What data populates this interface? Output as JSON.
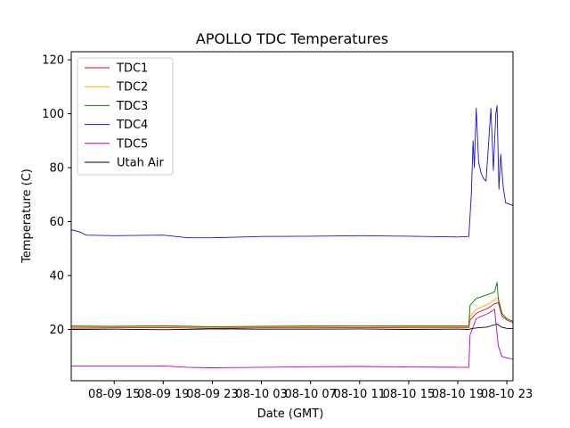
{
  "chart_data": {
    "type": "line",
    "title": "APOLLO TDC Temperatures",
    "xlabel": "Date (GMT)",
    "ylabel": "Temperature (C)",
    "x_ticks": [
      "08-09 15",
      "08-09 19",
      "08-09 23",
      "08-10 03",
      "08-10 07",
      "08-10 11",
      "08-10 15",
      "08-10 19",
      "08-10 23"
    ],
    "x_tick_hours": [
      15,
      19,
      23,
      27,
      31,
      35,
      39,
      43,
      47
    ],
    "xlim": [
      11.5,
      47.5
    ],
    "ylim": [
      1,
      123
    ],
    "y_ticks": [
      "20",
      "40",
      "60",
      "80",
      "100",
      "120"
    ],
    "y_tick_values": [
      20,
      40,
      60,
      80,
      100,
      120
    ],
    "legend_position": "upper-left",
    "series": [
      {
        "name": "TDC1",
        "color": "#e8001c",
        "x": [
          11.5,
          15,
          19,
          23,
          27,
          31,
          35,
          39,
          43,
          43.9,
          44.0,
          44.5,
          45.5,
          46.0,
          46.3,
          46.6,
          47.0,
          47.5
        ],
        "y": [
          20.5,
          20.6,
          20.7,
          20.4,
          20.6,
          20.6,
          20.7,
          20.6,
          20.6,
          20.6,
          23.5,
          26,
          28,
          29.5,
          30,
          25,
          23.5,
          22.5
        ]
      },
      {
        "name": "TDC2",
        "color": "#e8b400",
        "x": [
          11.5,
          15,
          19,
          23,
          27,
          31,
          35,
          39,
          43,
          43.9,
          44.0,
          44.5,
          45.5,
          46.0,
          46.3,
          46.6,
          47.0,
          47.5
        ],
        "y": [
          21.0,
          21.0,
          21.1,
          20.8,
          21.0,
          21.0,
          21.1,
          21.0,
          21.0,
          21.0,
          25,
          27.5,
          29.5,
          31,
          32,
          26,
          24,
          23
        ]
      },
      {
        "name": "TDC3",
        "color": "#008000",
        "x": [
          11.5,
          15,
          19,
          23,
          27,
          31,
          35,
          39,
          43,
          43.9,
          44.0,
          44.5,
          45.5,
          46.0,
          46.2,
          46.3,
          46.6,
          47.0,
          47.5
        ],
        "y": [
          21.3,
          21.2,
          21.4,
          21.0,
          21.2,
          21.3,
          21.4,
          21.3,
          21.3,
          21.3,
          29,
          31.5,
          33,
          34,
          37.5,
          31,
          26,
          24,
          23
        ]
      },
      {
        "name": "TDC4",
        "color": "#1a0fd6",
        "x": [
          11.5,
          12.3,
          12.7,
          15,
          19,
          21,
          23,
          27,
          31,
          35,
          39,
          43,
          43.9,
          44.1,
          44.25,
          44.35,
          44.5,
          44.7,
          44.9,
          45.1,
          45.3,
          45.5,
          45.7,
          45.9,
          46.1,
          46.2,
          46.35,
          46.5,
          46.7,
          46.9,
          47.5
        ],
        "y": [
          57,
          56,
          55,
          54.8,
          55,
          54,
          54,
          54.5,
          54.6,
          54.8,
          54.6,
          54.3,
          54.5,
          70,
          90,
          80,
          102,
          82,
          78,
          76,
          75,
          88,
          102,
          79,
          100,
          103,
          72,
          85,
          73,
          67,
          66
        ]
      },
      {
        "name": "TDC5",
        "color": "#b000b5",
        "x": [
          11.5,
          15,
          19,
          21,
          23,
          27,
          31,
          35,
          39,
          43,
          43.9,
          44.0,
          44.5,
          45.5,
          46.0,
          46.3,
          46.6,
          47.0,
          47.5
        ],
        "y": [
          6.5,
          6.5,
          6.5,
          6.0,
          5.8,
          6.0,
          6.2,
          6.3,
          6.1,
          6.0,
          6.0,
          18,
          24,
          26,
          27.5,
          14,
          10,
          9.5,
          9
        ]
      },
      {
        "name": "Utah Air",
        "color": "#000000",
        "x": [
          11.5,
          15,
          19,
          23,
          27,
          31,
          35,
          39,
          43,
          43.9,
          44.1,
          44.6,
          45.4,
          45.8,
          46.2,
          46.6,
          47.0,
          47.5
        ],
        "y": [
          20.0,
          20.1,
          19.9,
          20.2,
          20.1,
          20.1,
          20.2,
          20.0,
          20.1,
          20.0,
          20.3,
          20.6,
          20.9,
          21.5,
          22,
          20.8,
          20.4,
          20.3
        ]
      }
    ]
  }
}
